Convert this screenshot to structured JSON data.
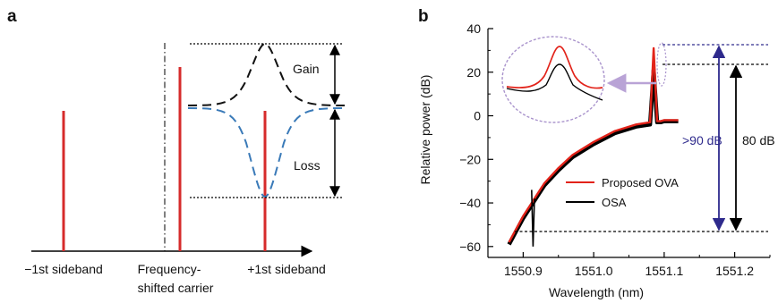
{
  "panel_a": {
    "label": "a",
    "gain_label": "Gain",
    "loss_label": "Loss",
    "x_labels": {
      "minus_first": "−1st sideband",
      "carrier_line1": "Frequency-",
      "carrier_line2": "shifted carrier",
      "plus_first": "+1st sideband"
    },
    "colors": {
      "sideband": "#d62b2b",
      "gain_curve": "#111111",
      "loss_curve": "#3a7ab8"
    }
  },
  "panel_b": {
    "label": "b",
    "gt90_label": ">90 dB",
    "db80_label": "80 dB",
    "colors": {
      "ova": "#e2231a",
      "osa": "#000000",
      "span90": "#2e2a8c",
      "inset_arrow": "#b9a3d6"
    }
  },
  "chart_data": {
    "type": "line",
    "xlabel": "Wavelength (nm)",
    "ylabel": "Relative power (dB)",
    "xlim": [
      1550.85,
      1551.25
    ],
    "ylim": [
      -65,
      40
    ],
    "x_ticks": [
      "1550.9",
      "1551.0",
      "1551.1",
      "1551.2"
    ],
    "y_ticks": [
      "40",
      "20",
      "0",
      "−20",
      "−40",
      "−60"
    ],
    "legend": [
      "Proposed OVA",
      "OSA"
    ],
    "series": [
      {
        "name": "Proposed OVA",
        "x": [
          1550.88,
          1550.89,
          1550.9,
          1550.91,
          1550.92,
          1550.93,
          1550.95,
          1550.97,
          1551.0,
          1551.03,
          1551.06,
          1551.08,
          1551.085,
          1551.09,
          1551.095,
          1551.1,
          1551.12
        ],
        "y": [
          -58,
          -52,
          -46,
          -41,
          -36,
          -31,
          -24,
          -18,
          -12,
          -7,
          -4,
          -3,
          31,
          -2.5,
          -2.5,
          -2,
          -2
        ]
      },
      {
        "name": "OSA",
        "x": [
          1550.88,
          1550.89,
          1550.9,
          1550.91,
          1550.92,
          1550.93,
          1550.95,
          1550.97,
          1551.0,
          1551.03,
          1551.06,
          1551.08,
          1551.085,
          1551.09,
          1551.095,
          1551.1,
          1551.12
        ],
        "y": [
          -59,
          -53,
          -47,
          -42,
          -37,
          -32,
          -25,
          -19,
          -13,
          -8,
          -5,
          -4,
          21,
          -3,
          -3,
          -2.5,
          -2.5
        ]
      }
    ]
  }
}
